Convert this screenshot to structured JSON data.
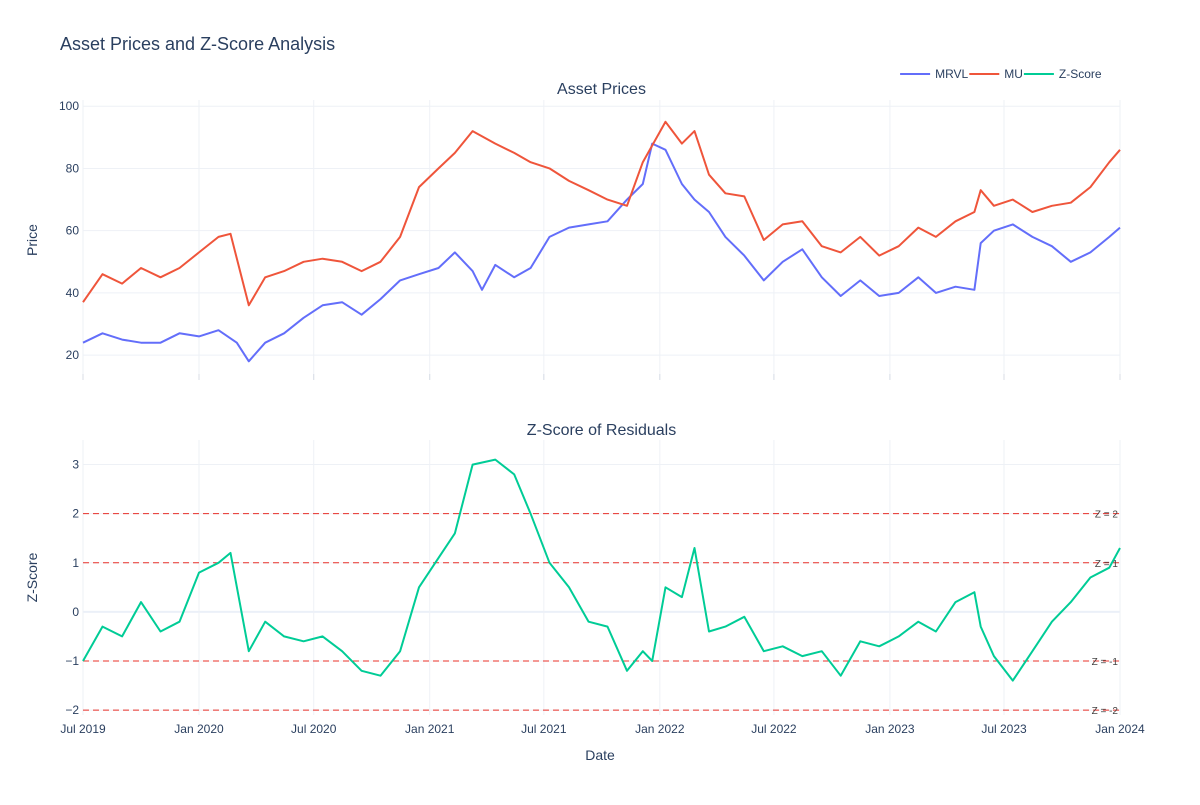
{
  "title": "Asset Prices and Z-Score Analysis",
  "xlabel": "Date",
  "legend": {
    "position": "top-right",
    "items": [
      {
        "name": "MRVL",
        "color": "#636efa"
      },
      {
        "name": "MU",
        "color": "#ef553b"
      },
      {
        "name": "Z-Score",
        "color": "#00cc96"
      }
    ]
  },
  "chart_data": [
    {
      "type": "line",
      "title": "Asset Prices",
      "ylabel": "Price",
      "xlim": [
        "2019-07-01",
        "2024-01-01"
      ],
      "ylim": [
        12,
        102
      ],
      "yticks": [
        20,
        40,
        60,
        80,
        100
      ],
      "xticks": [
        {
          "date": "2019-07-01",
          "label": "Jul 2019"
        },
        {
          "date": "2020-01-01",
          "label": "Jan 2020"
        },
        {
          "date": "2020-07-01",
          "label": "Jul 2020"
        },
        {
          "date": "2021-01-01",
          "label": "Jan 2021"
        },
        {
          "date": "2021-07-01",
          "label": "Jul 2021"
        },
        {
          "date": "2022-01-01",
          "label": "Jan 2022"
        },
        {
          "date": "2022-07-01",
          "label": "Jul 2022"
        },
        {
          "date": "2023-01-01",
          "label": "Jan 2023"
        },
        {
          "date": "2023-07-01",
          "label": "Jul 2023"
        },
        {
          "date": "2024-01-01",
          "label": "Jan 2024"
        }
      ],
      "grid": true,
      "series": [
        {
          "name": "MRVL",
          "color": "#636efa",
          "points": [
            [
              "2019-07-01",
              24
            ],
            [
              "2019-08-01",
              27
            ],
            [
              "2019-09-01",
              25
            ],
            [
              "2019-10-01",
              24
            ],
            [
              "2019-11-01",
              24
            ],
            [
              "2019-12-01",
              27
            ],
            [
              "2020-01-01",
              26
            ],
            [
              "2020-02-01",
              28
            ],
            [
              "2020-03-01",
              24
            ],
            [
              "2020-03-20",
              18
            ],
            [
              "2020-04-15",
              24
            ],
            [
              "2020-05-15",
              27
            ],
            [
              "2020-06-15",
              32
            ],
            [
              "2020-07-15",
              36
            ],
            [
              "2020-08-15",
              37
            ],
            [
              "2020-09-15",
              33
            ],
            [
              "2020-10-15",
              38
            ],
            [
              "2020-11-15",
              44
            ],
            [
              "2020-12-15",
              46
            ],
            [
              "2021-01-15",
              48
            ],
            [
              "2021-02-10",
              53
            ],
            [
              "2021-03-10",
              47
            ],
            [
              "2021-03-25",
              41
            ],
            [
              "2021-04-15",
              49
            ],
            [
              "2021-05-15",
              45
            ],
            [
              "2021-06-10",
              48
            ],
            [
              "2021-07-10",
              58
            ],
            [
              "2021-08-10",
              61
            ],
            [
              "2021-09-10",
              62
            ],
            [
              "2021-10-10",
              63
            ],
            [
              "2021-11-10",
              70
            ],
            [
              "2021-12-05",
              75
            ],
            [
              "2021-12-20",
              88
            ],
            [
              "2022-01-10",
              86
            ],
            [
              "2022-02-05",
              75
            ],
            [
              "2022-02-25",
              70
            ],
            [
              "2022-03-20",
              66
            ],
            [
              "2022-04-15",
              58
            ],
            [
              "2022-05-15",
              52
            ],
            [
              "2022-06-15",
              44
            ],
            [
              "2022-07-15",
              50
            ],
            [
              "2022-08-15",
              54
            ],
            [
              "2022-09-15",
              45
            ],
            [
              "2022-10-15",
              39
            ],
            [
              "2022-11-15",
              44
            ],
            [
              "2022-12-15",
              39
            ],
            [
              "2023-01-15",
              40
            ],
            [
              "2023-02-15",
              45
            ],
            [
              "2023-03-15",
              40
            ],
            [
              "2023-04-15",
              42
            ],
            [
              "2023-05-15",
              41
            ],
            [
              "2023-05-25",
              56
            ],
            [
              "2023-06-15",
              60
            ],
            [
              "2023-07-15",
              62
            ],
            [
              "2023-08-15",
              58
            ],
            [
              "2023-09-15",
              55
            ],
            [
              "2023-10-15",
              50
            ],
            [
              "2023-11-15",
              53
            ],
            [
              "2023-12-15",
              58
            ],
            [
              "2024-01-01",
              61
            ]
          ]
        },
        {
          "name": "MU",
          "color": "#ef553b",
          "points": [
            [
              "2019-07-01",
              37
            ],
            [
              "2019-08-01",
              46
            ],
            [
              "2019-09-01",
              43
            ],
            [
              "2019-10-01",
              48
            ],
            [
              "2019-11-01",
              45
            ],
            [
              "2019-12-01",
              48
            ],
            [
              "2020-01-01",
              53
            ],
            [
              "2020-02-01",
              58
            ],
            [
              "2020-02-20",
              59
            ],
            [
              "2020-03-20",
              36
            ],
            [
              "2020-04-15",
              45
            ],
            [
              "2020-05-15",
              47
            ],
            [
              "2020-06-15",
              50
            ],
            [
              "2020-07-15",
              51
            ],
            [
              "2020-08-15",
              50
            ],
            [
              "2020-09-15",
              47
            ],
            [
              "2020-10-15",
              50
            ],
            [
              "2020-11-15",
              58
            ],
            [
              "2020-12-15",
              74
            ],
            [
              "2021-01-15",
              80
            ],
            [
              "2021-02-10",
              85
            ],
            [
              "2021-03-10",
              92
            ],
            [
              "2021-04-15",
              88
            ],
            [
              "2021-05-15",
              85
            ],
            [
              "2021-06-10",
              82
            ],
            [
              "2021-07-10",
              80
            ],
            [
              "2021-08-10",
              76
            ],
            [
              "2021-09-10",
              73
            ],
            [
              "2021-10-10",
              70
            ],
            [
              "2021-11-10",
              68
            ],
            [
              "2021-12-05",
              82
            ],
            [
              "2022-01-10",
              95
            ],
            [
              "2022-02-05",
              88
            ],
            [
              "2022-02-25",
              92
            ],
            [
              "2022-03-20",
              78
            ],
            [
              "2022-04-15",
              72
            ],
            [
              "2022-05-15",
              71
            ],
            [
              "2022-06-15",
              57
            ],
            [
              "2022-07-15",
              62
            ],
            [
              "2022-08-15",
              63
            ],
            [
              "2022-09-15",
              55
            ],
            [
              "2022-10-15",
              53
            ],
            [
              "2022-11-15",
              58
            ],
            [
              "2022-12-15",
              52
            ],
            [
              "2023-01-15",
              55
            ],
            [
              "2023-02-15",
              61
            ],
            [
              "2023-03-15",
              58
            ],
            [
              "2023-04-15",
              63
            ],
            [
              "2023-05-15",
              66
            ],
            [
              "2023-05-25",
              73
            ],
            [
              "2023-06-15",
              68
            ],
            [
              "2023-07-15",
              70
            ],
            [
              "2023-08-15",
              66
            ],
            [
              "2023-09-15",
              68
            ],
            [
              "2023-10-15",
              69
            ],
            [
              "2023-11-15",
              74
            ],
            [
              "2023-12-15",
              82
            ],
            [
              "2024-01-01",
              86
            ]
          ]
        }
      ]
    },
    {
      "type": "line",
      "title": "Z-Score of Residuals",
      "ylabel": "Z-Score",
      "xlim": [
        "2019-07-01",
        "2024-01-01"
      ],
      "ylim": [
        -2.1,
        3.5
      ],
      "yticks": [
        -2,
        -1,
        0,
        1,
        2,
        3
      ],
      "ytick_labels": [
        "−2",
        "−1",
        "0",
        "1",
        "2",
        "3"
      ],
      "grid": true,
      "series": [
        {
          "name": "Z-Score",
          "color": "#00cc96",
          "points": [
            [
              "2019-07-01",
              -1.0
            ],
            [
              "2019-08-01",
              -0.3
            ],
            [
              "2019-09-01",
              -0.5
            ],
            [
              "2019-10-01",
              0.2
            ],
            [
              "2019-11-01",
              -0.4
            ],
            [
              "2019-12-01",
              -0.2
            ],
            [
              "2020-01-01",
              0.8
            ],
            [
              "2020-02-01",
              1.0
            ],
            [
              "2020-02-20",
              1.2
            ],
            [
              "2020-03-20",
              -0.8
            ],
            [
              "2020-04-15",
              -0.2
            ],
            [
              "2020-05-15",
              -0.5
            ],
            [
              "2020-06-15",
              -0.6
            ],
            [
              "2020-07-15",
              -0.5
            ],
            [
              "2020-08-15",
              -0.8
            ],
            [
              "2020-09-15",
              -1.2
            ],
            [
              "2020-10-15",
              -1.3
            ],
            [
              "2020-11-15",
              -0.8
            ],
            [
              "2020-12-15",
              0.5
            ],
            [
              "2021-01-15",
              1.1
            ],
            [
              "2021-02-10",
              1.6
            ],
            [
              "2021-03-10",
              3.0
            ],
            [
              "2021-04-15",
              3.1
            ],
            [
              "2021-05-15",
              2.8
            ],
            [
              "2021-06-10",
              2.0
            ],
            [
              "2021-07-10",
              1.0
            ],
            [
              "2021-08-10",
              0.5
            ],
            [
              "2021-09-10",
              -0.2
            ],
            [
              "2021-10-10",
              -0.3
            ],
            [
              "2021-11-10",
              -1.2
            ],
            [
              "2021-12-05",
              -0.8
            ],
            [
              "2021-12-20",
              -1.0
            ],
            [
              "2022-01-10",
              0.5
            ],
            [
              "2022-02-05",
              0.3
            ],
            [
              "2022-02-25",
              1.3
            ],
            [
              "2022-03-20",
              -0.4
            ],
            [
              "2022-04-15",
              -0.3
            ],
            [
              "2022-05-15",
              -0.1
            ],
            [
              "2022-06-15",
              -0.8
            ],
            [
              "2022-07-15",
              -0.7
            ],
            [
              "2022-08-15",
              -0.9
            ],
            [
              "2022-09-15",
              -0.8
            ],
            [
              "2022-10-15",
              -1.3
            ],
            [
              "2022-11-15",
              -0.6
            ],
            [
              "2022-12-15",
              -0.7
            ],
            [
              "2023-01-15",
              -0.5
            ],
            [
              "2023-02-15",
              -0.2
            ],
            [
              "2023-03-15",
              -0.4
            ],
            [
              "2023-04-15",
              0.2
            ],
            [
              "2023-05-15",
              0.4
            ],
            [
              "2023-05-25",
              -0.3
            ],
            [
              "2023-06-15",
              -0.9
            ],
            [
              "2023-07-15",
              -1.4
            ],
            [
              "2023-08-15",
              -0.8
            ],
            [
              "2023-09-15",
              -0.2
            ],
            [
              "2023-10-15",
              0.2
            ],
            [
              "2023-11-15",
              0.7
            ],
            [
              "2023-12-15",
              0.9
            ],
            [
              "2024-01-01",
              1.3
            ]
          ]
        }
      ],
      "reference_lines": [
        {
          "y": 2,
          "label": "Z = 2",
          "color": "#e8302a"
        },
        {
          "y": 1,
          "label": "Z = 1",
          "color": "#e8302a"
        },
        {
          "y": -1,
          "label": "Z = -1",
          "color": "#e8302a"
        },
        {
          "y": -2,
          "label": "Z = -2",
          "color": "#e8302a"
        }
      ]
    }
  ]
}
